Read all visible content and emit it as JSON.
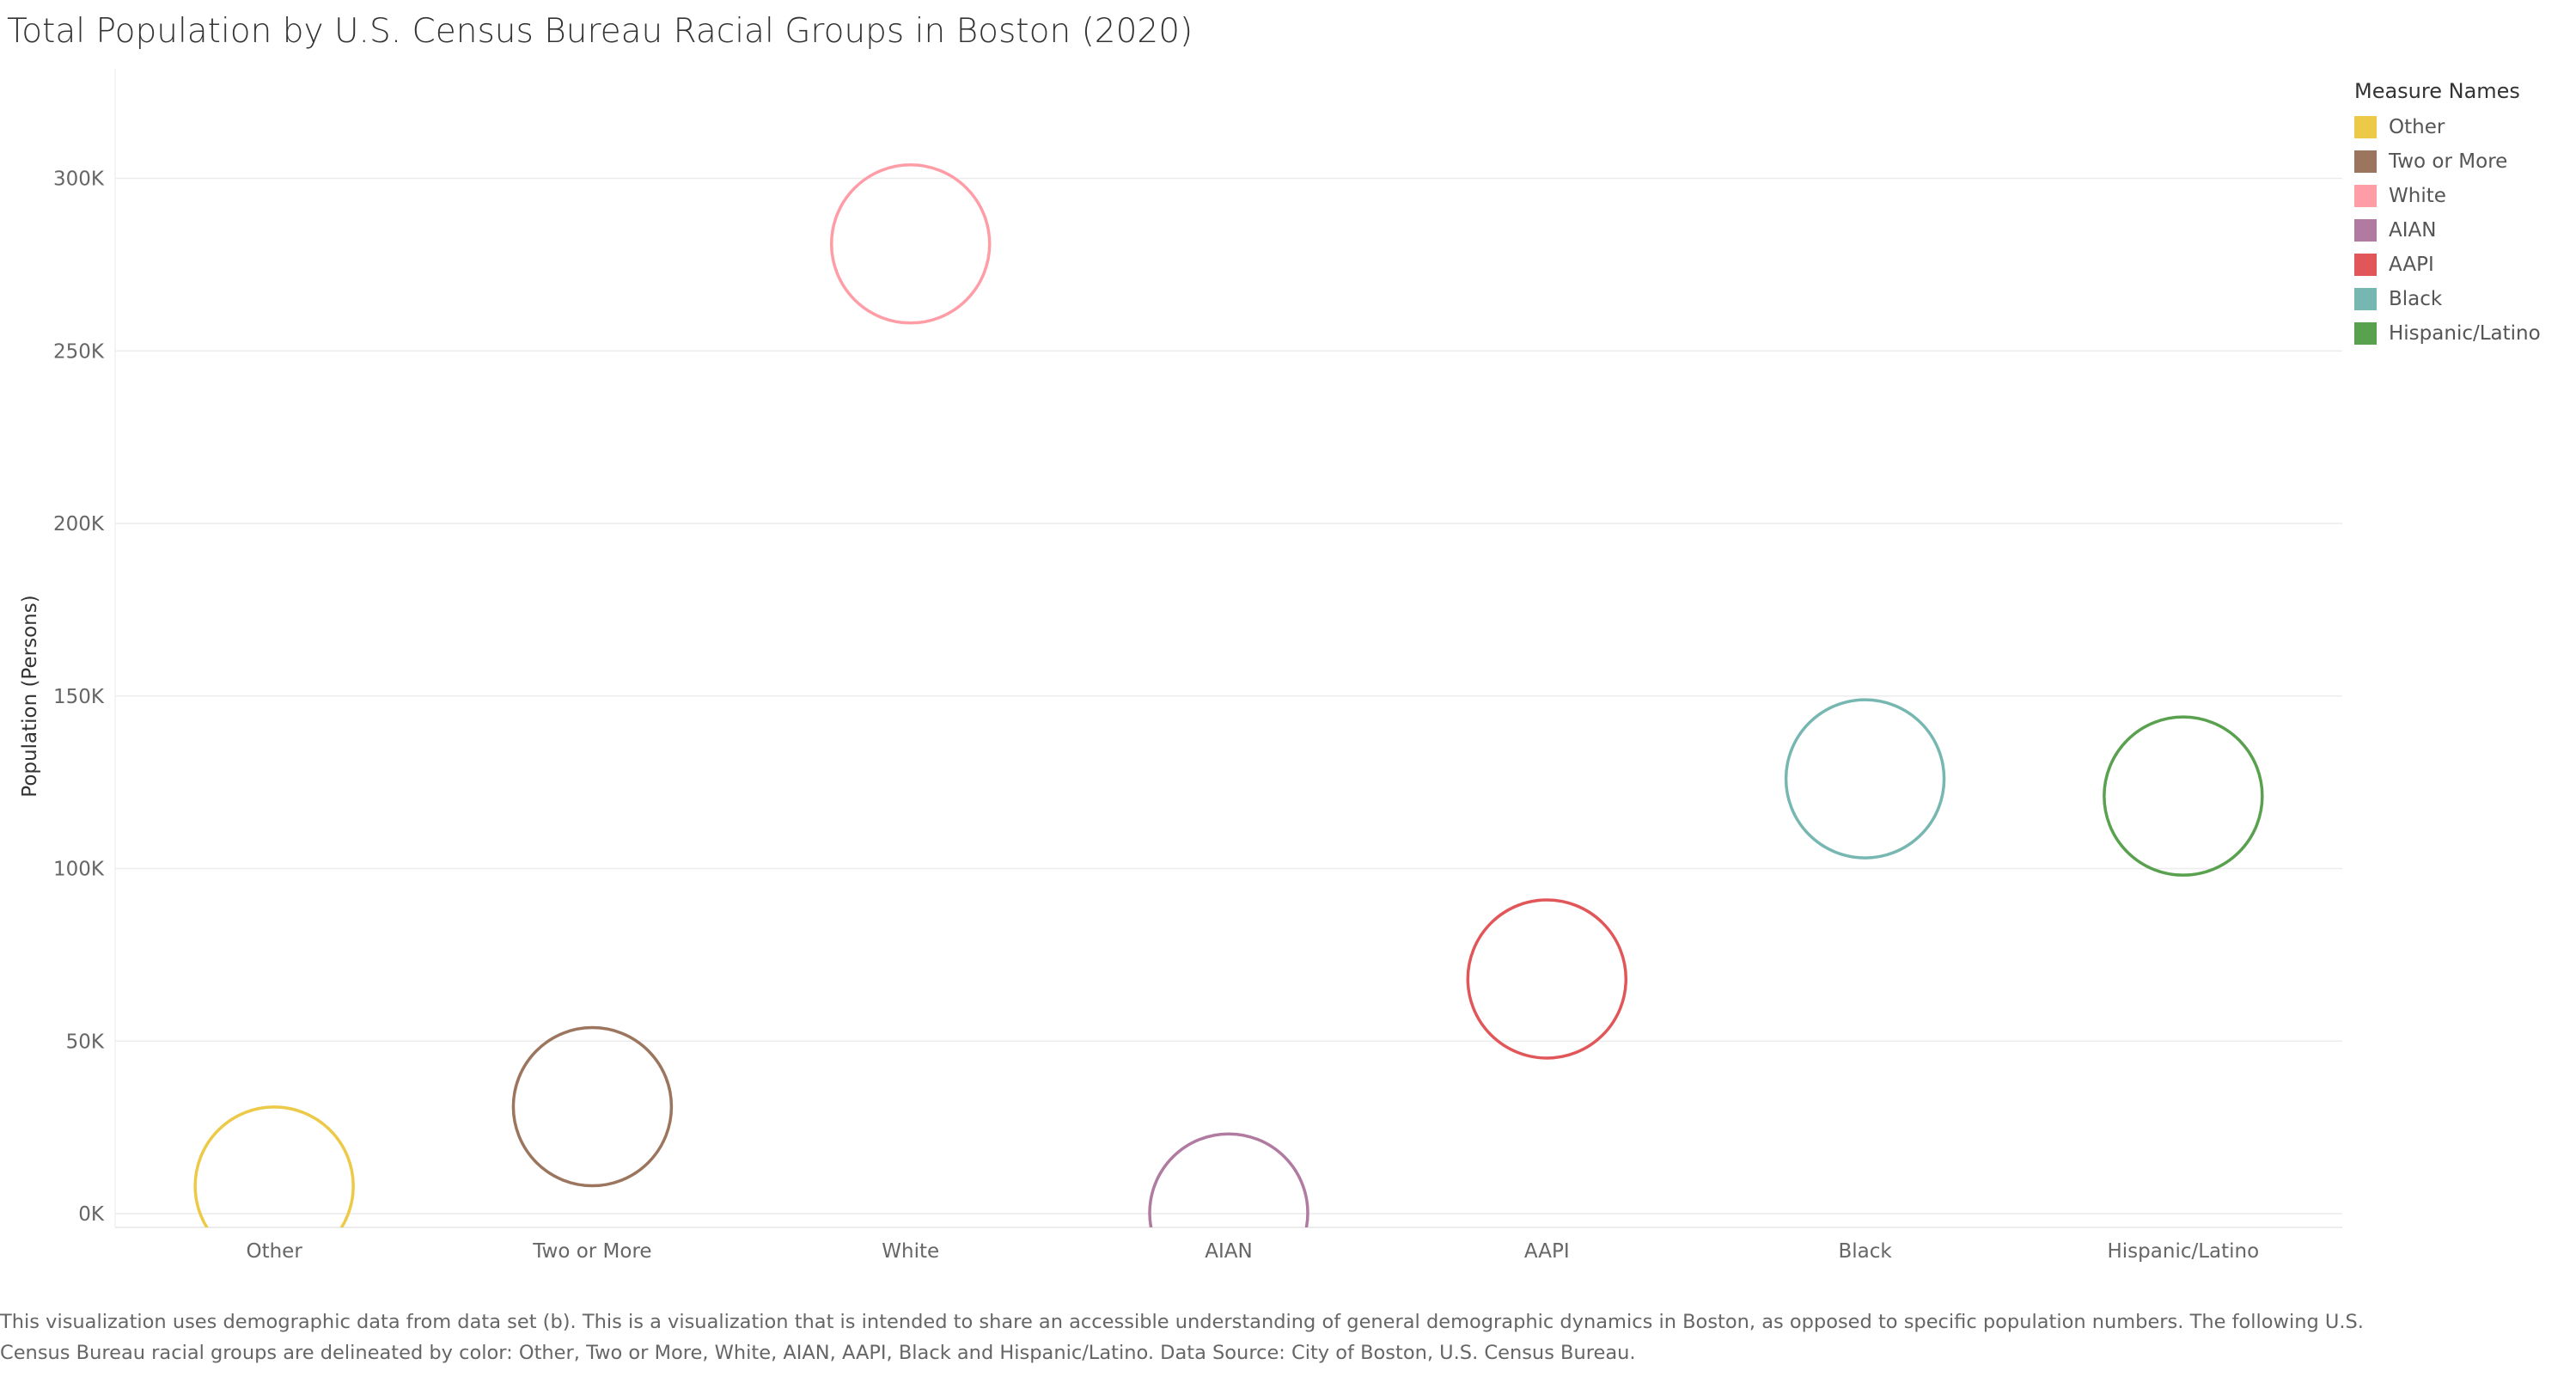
{
  "chart_data": {
    "type": "scatter",
    "title": "Total Population by U.S. Census Bureau Racial Groups in Boston (2020)",
    "ylabel": "Population (Persons)",
    "xlabel": "",
    "categories": [
      "Other",
      "Two or More",
      "White",
      "AIAN",
      "AAPI",
      "Black",
      "Hispanic/Latino"
    ],
    "values": [
      8000,
      31000,
      281000,
      200,
      68000,
      126000,
      121000
    ],
    "colors": [
      "#edc948",
      "#9c755f",
      "#ff9da7",
      "#b07aa1",
      "#e15759",
      "#76b7b2",
      "#59a14f"
    ],
    "ylim": [
      -4000,
      330000
    ],
    "yticks": [
      0,
      50000,
      100000,
      150000,
      200000,
      250000,
      300000
    ],
    "ytick_labels": [
      "0K",
      "50K",
      "100K",
      "150K",
      "200K",
      "250K",
      "300K"
    ],
    "grid": true,
    "legend": {
      "title": "Measure Names",
      "placement": "right",
      "entries": [
        "Other",
        "Two or More",
        "White",
        "AIAN",
        "AAPI",
        "Black",
        "Hispanic/Latino"
      ]
    }
  },
  "caption": "This visualization uses demographic data from data set (b).  This is a visualization that is intended to share an accessible understanding of general demographic dynamics in Boston, as opposed to specific population numbers. The following U.S. Census Bureau racial groups are delineated by color: Other, Two or More, White, AIAN, AAPI, Black and Hispanic/Latino. Data Source: City of Boston, U.S. Census Bureau."
}
